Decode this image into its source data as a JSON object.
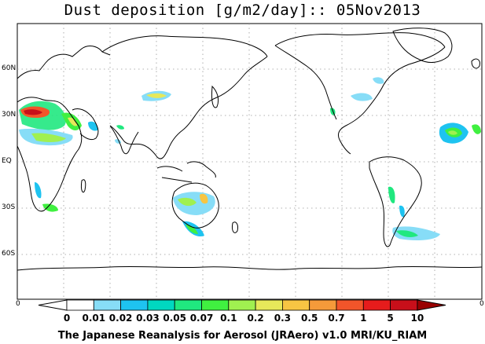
{
  "title": "Dust deposition [g/m2/day]:: 05Nov2013",
  "latitude_labels": [
    "60N",
    "30N",
    "EQ",
    "30S",
    "60S"
  ],
  "edge_labels": {
    "left": "0",
    "right": "0"
  },
  "colorbar": {
    "values": [
      "0",
      "0.01",
      "0.02",
      "0.03",
      "0.05",
      "0.07",
      "0.1",
      "0.2",
      "0.3",
      "0.5",
      "0.7",
      "1",
      "5",
      "10"
    ],
    "colors": [
      "#ffffff",
      "#87ddf7",
      "#1ec3f0",
      "#00d8c0",
      "#20e87f",
      "#40f040",
      "#a0f050",
      "#e6e85a",
      "#f7c543",
      "#f59a3a",
      "#f2552a",
      "#e61c1c",
      "#c80f1a",
      "#990000"
    ]
  },
  "credit": "The Japanese Reanalysis for Aerosol (JRAero) v1.0 MRI/KU_RIAM"
}
